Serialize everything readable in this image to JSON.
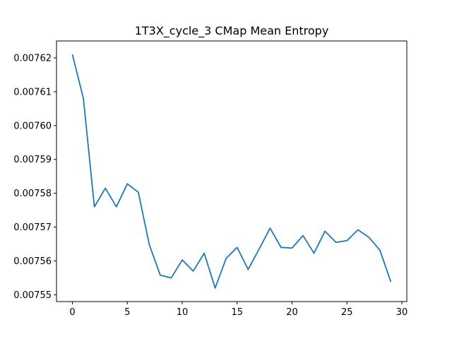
{
  "chart_data": {
    "type": "line",
    "title": "1T3X_cycle_3 CMap Mean Entropy",
    "xlabel": "",
    "ylabel": "",
    "xlim": [
      -1.45,
      30.45
    ],
    "ylim": [
      0.007548,
      0.007625
    ],
    "x_ticks": [
      0,
      5,
      10,
      15,
      20,
      25,
      30
    ],
    "x_tick_labels": [
      "0",
      "5",
      "10",
      "15",
      "20",
      "25",
      "30"
    ],
    "y_ticks": [
      0.00755,
      0.00756,
      0.00757,
      0.00758,
      0.00759,
      0.0076,
      0.00761,
      0.00762
    ],
    "y_tick_labels": [
      "0.00755",
      "0.00756",
      "0.00757",
      "0.00758",
      "0.00759",
      "0.00760",
      "0.00761",
      "0.00762"
    ],
    "grid": false,
    "line_color": "#1f77b4",
    "series": [
      {
        "x": [
          0,
          1,
          2,
          3,
          4,
          5,
          6,
          7,
          8,
          9,
          10,
          11,
          12,
          13,
          14,
          15,
          16,
          17,
          18,
          19,
          20,
          21,
          22,
          23,
          24,
          25,
          26,
          27,
          28,
          29
        ],
        "values": [
          0.007621,
          0.007608,
          0.007576,
          0.0075815,
          0.007576,
          0.0075828,
          0.0075803,
          0.0075648,
          0.0075558,
          0.007555,
          0.0075603,
          0.007557,
          0.0075623,
          0.007552,
          0.0075608,
          0.007564,
          0.0075575,
          0.0075635,
          0.0075697,
          0.007564,
          0.0075638,
          0.0075675,
          0.0075623,
          0.0075688,
          0.0075655,
          0.007566,
          0.0075692,
          0.007567,
          0.0075632,
          0.0075538
        ]
      }
    ]
  }
}
